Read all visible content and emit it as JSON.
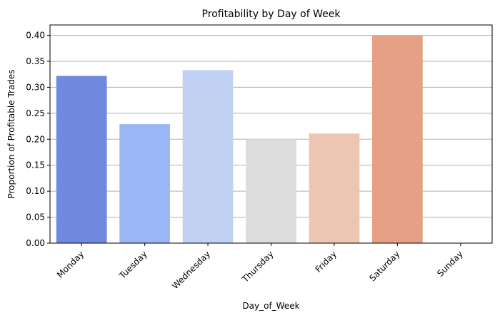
{
  "chart_data": {
    "type": "bar",
    "title": "Profitability by Day of Week",
    "xlabel": "Day_of_Week",
    "ylabel": "Proportion of Profitable Trades",
    "categories": [
      "Monday",
      "Tuesday",
      "Wednesday",
      "Thursday",
      "Friday",
      "Saturday",
      "Sunday"
    ],
    "values": [
      0.322,
      0.229,
      0.333,
      0.2,
      0.211,
      0.4,
      0.0
    ],
    "colors": [
      "#7089e0",
      "#9ab6f5",
      "#c0d1f3",
      "#dcdcdc",
      "#edc6b3",
      "#e5a085",
      "#c73535"
    ],
    "ylim": [
      0,
      0.42
    ],
    "yticks": [
      "0.00",
      "0.05",
      "0.10",
      "0.15",
      "0.20",
      "0.25",
      "0.30",
      "0.35",
      "0.40"
    ],
    "grid": "y-major",
    "legend": "none"
  }
}
